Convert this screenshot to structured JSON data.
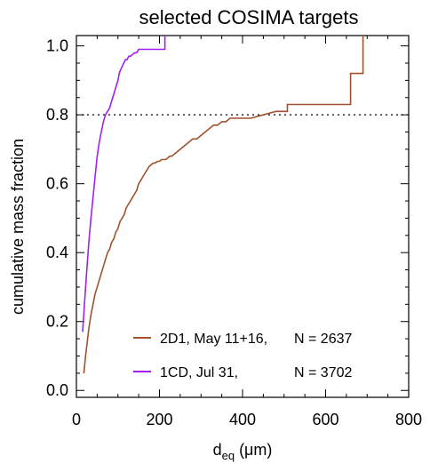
{
  "chart_data": {
    "type": "line",
    "title": "selected COSIMA targets",
    "xlabel_main": "d",
    "xlabel_sub": "eq",
    "xlabel_unit": "(μm)",
    "ylabel": "cumulative mass fraction",
    "xlim": [
      0,
      800
    ],
    "ylim": [
      -0.02,
      1.03
    ],
    "x_ticks": [
      "0",
      "200",
      "400",
      "600",
      "800"
    ],
    "y_ticks": [
      "0.0",
      "0.2",
      "0.4",
      "0.6",
      "0.8",
      "1.0"
    ],
    "reference_line": {
      "y": 0.8,
      "style": "dotted"
    },
    "series": [
      {
        "name": "2D1, May 11+16, N = 2637",
        "legend_label": "2D1, May 11+16,",
        "legend_count": "N = 2637",
        "color": "#a0522d",
        "x": [
          18,
          22,
          26,
          30,
          35,
          40,
          45,
          50,
          55,
          60,
          65,
          70,
          75,
          80,
          85,
          90,
          95,
          100,
          105,
          110,
          115,
          120,
          125,
          130,
          135,
          140,
          145,
          150,
          155,
          160,
          165,
          170,
          175,
          180,
          185,
          190,
          195,
          200,
          205,
          210,
          215,
          220,
          225,
          230,
          240,
          250,
          260,
          270,
          280,
          290,
          300,
          310,
          320,
          330,
          340,
          350,
          360,
          370,
          380,
          400,
          420,
          450,
          480,
          508,
          508,
          560,
          600,
          640,
          660,
          660,
          690,
          690
        ],
        "y": [
          0.05,
          0.1,
          0.14,
          0.18,
          0.22,
          0.25,
          0.28,
          0.3,
          0.32,
          0.34,
          0.36,
          0.38,
          0.4,
          0.41,
          0.43,
          0.44,
          0.46,
          0.47,
          0.49,
          0.5,
          0.51,
          0.53,
          0.54,
          0.55,
          0.56,
          0.57,
          0.58,
          0.6,
          0.61,
          0.62,
          0.63,
          0.64,
          0.65,
          0.655,
          0.66,
          0.66,
          0.665,
          0.665,
          0.67,
          0.67,
          0.67,
          0.675,
          0.68,
          0.68,
          0.69,
          0.7,
          0.71,
          0.72,
          0.73,
          0.73,
          0.74,
          0.75,
          0.76,
          0.77,
          0.77,
          0.78,
          0.78,
          0.79,
          0.79,
          0.79,
          0.79,
          0.8,
          0.81,
          0.81,
          0.83,
          0.83,
          0.83,
          0.83,
          0.83,
          0.92,
          0.92,
          1.03
        ]
      },
      {
        "name": "1CD, Jul 31, N = 3702",
        "legend_label": "1CD, Jul 31,",
        "legend_count": "N = 3702",
        "color": "#a020f0",
        "x": [
          15,
          20,
          25,
          30,
          35,
          40,
          45,
          50,
          55,
          60,
          65,
          70,
          75,
          80,
          85,
          90,
          95,
          100,
          103,
          106,
          110,
          114,
          118,
          122,
          126,
          130,
          135,
          140,
          145,
          150,
          160,
          170,
          190,
          210,
          213,
          213
        ],
        "y": [
          0.17,
          0.26,
          0.35,
          0.43,
          0.5,
          0.56,
          0.62,
          0.68,
          0.72,
          0.75,
          0.78,
          0.8,
          0.81,
          0.82,
          0.84,
          0.86,
          0.88,
          0.9,
          0.92,
          0.93,
          0.94,
          0.95,
          0.96,
          0.96,
          0.97,
          0.97,
          0.975,
          0.98,
          0.98,
          0.99,
          0.99,
          0.99,
          0.99,
          0.99,
          0.99,
          1.03
        ]
      }
    ]
  }
}
